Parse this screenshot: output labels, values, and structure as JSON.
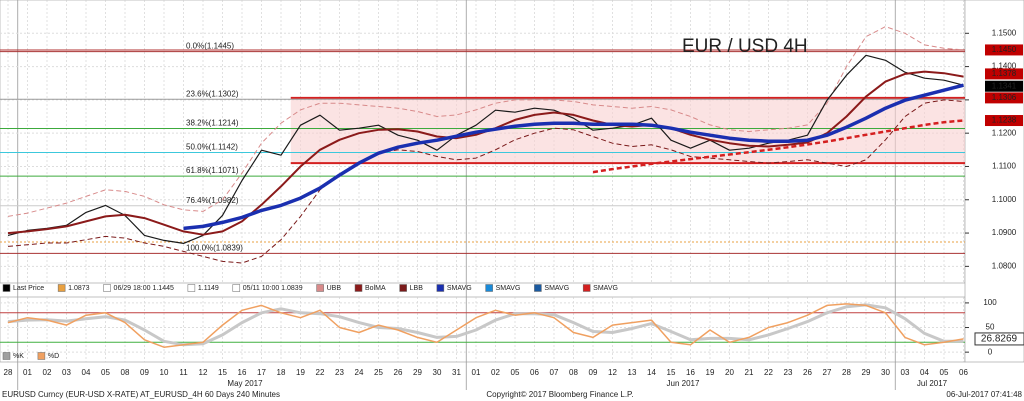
{
  "chart_data": [
    {
      "type": "line",
      "title": "EUR / USD 4H",
      "categories": [
        "28",
        "01",
        "02",
        "03",
        "04",
        "05",
        "08",
        "09",
        "10",
        "11",
        "12",
        "15",
        "16",
        "17",
        "18",
        "19",
        "22",
        "23",
        "24",
        "25",
        "26",
        "29",
        "30",
        "31",
        "01",
        "02",
        "05",
        "06",
        "07",
        "08",
        "09",
        "12",
        "13",
        "14",
        "15",
        "16",
        "19",
        "20",
        "21",
        "22",
        "23",
        "26",
        "27",
        "28",
        "29",
        "30",
        "03",
        "04",
        "05",
        "06"
      ],
      "months": [
        "May 2017",
        "Jun 2017",
        "Jul 2017"
      ],
      "ylim": [
        1.075,
        1.16
      ],
      "yticks": [
        {
          "value": 1.15,
          "label": "1.1500"
        },
        {
          "value": 1.14,
          "label": "1.1400"
        },
        {
          "value": 1.13,
          "label": "1.1300"
        },
        {
          "value": 1.12,
          "label": "1.1200"
        },
        {
          "value": 1.11,
          "label": "1.1100"
        },
        {
          "value": 1.1,
          "label": "1.1000"
        },
        {
          "value": 1.09,
          "label": "1.0900"
        },
        {
          "value": 1.08,
          "label": "1.0800"
        }
      ],
      "grid": true,
      "series": [
        {
          "color": "#d88a8a",
          "dash": true,
          "width": 1,
          "values": [
            1.095,
            1.096,
            1.0975,
            1.099,
            1.101,
            1.103,
            1.1025,
            1.101,
            1.0985,
            1.097,
            1.0965,
            1.1,
            1.108,
            1.117,
            1.123,
            1.127,
            1.129,
            1.129,
            1.1285,
            1.128,
            1.1275,
            1.1265,
            1.125,
            1.1255,
            1.127,
            1.129,
            1.13,
            1.13,
            1.13,
            1.1295,
            1.1285,
            1.128,
            1.1275,
            1.128,
            1.127,
            1.125,
            1.1225,
            1.121,
            1.1205,
            1.121,
            1.1215,
            1.1225,
            1.129,
            1.14,
            1.149,
            1.152,
            1.15,
            1.1465,
            1.1455,
            1.145
          ]
        },
        {
          "color": "#7a1a1a",
          "dash": true,
          "width": 1,
          "values": [
            1.086,
            1.0865,
            1.087,
            1.087,
            1.088,
            1.089,
            1.0885,
            1.087,
            1.086,
            1.0845,
            1.083,
            1.0815,
            1.081,
            1.083,
            1.088,
            1.095,
            1.103,
            1.1075,
            1.111,
            1.114,
            1.115,
            1.1145,
            1.113,
            1.112,
            1.1125,
            1.115,
            1.118,
            1.12,
            1.1215,
            1.121,
            1.119,
            1.117,
            1.116,
            1.1165,
            1.115,
            1.113,
            1.1125,
            1.112,
            1.1115,
            1.111,
            1.1115,
            1.112,
            1.111,
            1.11,
            1.112,
            1.118,
            1.125,
            1.129,
            1.13,
            1.1295
          ]
        },
        {
          "color": "#1a1a1a",
          "dash": false,
          "width": 1.2,
          "values": [
            1.0893,
            1.0908,
            1.0914,
            1.0923,
            1.0962,
            1.0983,
            1.0953,
            1.0893,
            1.0878,
            1.0869,
            1.0893,
            1.0953,
            1.1058,
            1.1149,
            1.1134,
            1.1224,
            1.1254,
            1.1209,
            1.1215,
            1.1224,
            1.1194,
            1.1179,
            1.1149,
            1.1194,
            1.1224,
            1.1269,
            1.1263,
            1.1275,
            1.1269,
            1.1245,
            1.1209,
            1.1215,
            1.1224,
            1.1245,
            1.1179,
            1.1155,
            1.1179,
            1.1149,
            1.1155,
            1.117,
            1.1179,
            1.1194,
            1.1299,
            1.1374,
            1.1434,
            1.1419,
            1.1383,
            1.1365,
            1.1359,
            1.1344
          ]
        },
        {
          "color": "#8b1a1a",
          "dash": false,
          "width": 2,
          "values": [
            1.09,
            1.0905,
            1.0912,
            1.092,
            1.0935,
            1.095,
            1.0955,
            1.0945,
            1.0925,
            1.0905,
            1.0895,
            1.0905,
            1.0935,
            1.0985,
            1.104,
            1.11,
            1.115,
            1.118,
            1.12,
            1.121,
            1.1212,
            1.1205,
            1.119,
            1.1185,
            1.1195,
            1.1215,
            1.124,
            1.1255,
            1.1262,
            1.1255,
            1.1238,
            1.1225,
            1.122,
            1.1225,
            1.1215,
            1.1195,
            1.118,
            1.117,
            1.1162,
            1.116,
            1.1165,
            1.1172,
            1.12,
            1.125,
            1.131,
            1.1355,
            1.1378,
            1.1385,
            1.138,
            1.137
          ]
        },
        {
          "color": "#1a2fb0",
          "dash": false,
          "width": 3.5,
          "values": [
            null,
            null,
            null,
            null,
            null,
            null,
            null,
            null,
            null,
            1.0914,
            1.092,
            1.0932,
            1.0947,
            1.0968,
            1.0983,
            1.1005,
            1.1035,
            1.1074,
            1.111,
            1.114,
            1.1158,
            1.117,
            1.1179,
            1.1191,
            1.1203,
            1.1212,
            1.1221,
            1.1227,
            1.123,
            1.123,
            1.1227,
            1.1227,
            1.1227,
            1.1224,
            1.1215,
            1.1203,
            1.1194,
            1.1185,
            1.1179,
            1.1176,
            1.1176,
            1.1179,
            1.1194,
            1.1218,
            1.1245,
            1.1275,
            1.1299,
            1.1314,
            1.1329,
            1.1344
          ]
        },
        {
          "color": "#d42020",
          "dash": true,
          "width": 2.5,
          "values": [
            null,
            null,
            null,
            null,
            null,
            null,
            null,
            null,
            null,
            null,
            null,
            null,
            null,
            null,
            null,
            null,
            null,
            null,
            null,
            null,
            null,
            null,
            null,
            null,
            null,
            null,
            null,
            null,
            null,
            null,
            1.1083,
            1.1092,
            1.11,
            1.1108,
            1.1115,
            1.1122,
            1.1129,
            1.1136,
            1.1143,
            1.115,
            1.1158,
            1.1166,
            1.1175,
            1.1185,
            1.1195,
            1.1205,
            1.1215,
            1.1225,
            1.1233,
            1.1238
          ]
        }
      ],
      "channel": {
        "upper": 1.1306,
        "lower": 1.111,
        "color": "#d42020"
      },
      "levels": [
        {
          "value": 1.1445,
          "label": "0.0%(1.1445)",
          "color": "#a83232"
        },
        {
          "value": 1.1302,
          "label": "23.6%(1.1302)",
          "color": "#999999"
        },
        {
          "value": 1.1214,
          "label": "38.2%(1.1214)",
          "color": "#3caa3c"
        },
        {
          "value": 1.1142,
          "label": "50.0%(1.1142)",
          "color": "#3cc8dc"
        },
        {
          "value": 1.1071,
          "label": "61.8%(1.1071)",
          "color": "#3caa3c"
        },
        {
          "value": 1.0982,
          "label": "76.4%(1.0982)",
          "color": "#cccccc"
        },
        {
          "value": 1.0839,
          "label": "100.0%(1.0839)",
          "color": "#a83232"
        }
      ],
      "hlines": [
        {
          "value": 1.145,
          "color": "#b03030"
        },
        {
          "value": 1.0873,
          "color": "#e8a040"
        }
      ],
      "price_boxes": [
        {
          "value": 1.145,
          "label": "1.1450",
          "color": "#c00000"
        },
        {
          "value": 1.1378,
          "label": "1.1378",
          "color": "#c00000"
        },
        {
          "value": 1.1341,
          "label": "1.1341",
          "color": "#000000"
        },
        {
          "value": 1.1306,
          "label": "1.1306",
          "color": "#c00000"
        },
        {
          "value": 1.1238,
          "label": "1.1238",
          "color": "#c00000"
        }
      ],
      "legend": [
        {
          "label": "Last Price",
          "color": "#000000"
        },
        {
          "label": "1.0873",
          "color": "#e8a040"
        },
        {
          "label": "06/29 18:00 1.1445",
          "color": "#ffffff"
        },
        {
          "label": "1.1149",
          "color": "#ffffff"
        },
        {
          "label": "05/11 10:00 1.0839",
          "color": "#ffffff"
        },
        {
          "label": "UBB",
          "color": "#d88a8a"
        },
        {
          "label": "BolMA",
          "color": "#8b1a1a"
        },
        {
          "label": "LBB",
          "color": "#7a1a1a"
        },
        {
          "label": "SMAVG",
          "color": "#1a2fb0"
        },
        {
          "label": "SMAVG",
          "color": "#1a8ad8"
        },
        {
          "label": "SMAVG",
          "color": "#1a5aa0"
        },
        {
          "label": "SMAVG",
          "color": "#d42020"
        }
      ]
    },
    {
      "type": "line",
      "ylim": [
        -20,
        112
      ],
      "yticks": [
        100,
        50,
        0
      ],
      "series": [
        {
          "color": "#c8c8c8",
          "dash": false,
          "width": 3,
          "values": [
            62,
            65,
            66,
            63,
            68,
            72,
            65,
            45,
            22,
            15,
            17,
            35,
            60,
            80,
            88,
            80,
            78,
            72,
            60,
            50,
            48,
            40,
            30,
            32,
            45,
            65,
            78,
            78,
            76,
            60,
            42,
            40,
            48,
            58,
            42,
            25,
            28,
            28,
            25,
            35,
            48,
            62,
            80,
            92,
            96,
            90,
            68,
            38,
            22,
            22
          ]
        },
        {
          "color": "#f0a060",
          "dash": false,
          "width": 1.5,
          "values": [
            60,
            70,
            65,
            55,
            75,
            80,
            60,
            25,
            10,
            15,
            20,
            55,
            85,
            95,
            80,
            70,
            85,
            50,
            40,
            55,
            45,
            30,
            20,
            45,
            70,
            85,
            75,
            80,
            70,
            40,
            30,
            55,
            60,
            65,
            20,
            15,
            45,
            20,
            30,
            50,
            60,
            75,
            95,
            98,
            95,
            80,
            30,
            15,
            20,
            26.8269
          ]
        }
      ],
      "levels": [
        {
          "value": 80,
          "color": "#c04040"
        },
        {
          "value": 20,
          "color": "#40b040"
        }
      ],
      "last_value": 26.8269,
      "legend": [
        {
          "label": "%K",
          "color": "#a0a0a0"
        },
        {
          "label": "%D",
          "color": "#f0a060"
        }
      ]
    }
  ],
  "footer": {
    "left": "EURUSD Curncy (EUR-USD X-RATE) AT_EURUSD_4H 60 Days 240 Minutes",
    "center": "Copyright© 2017 Bloomberg Finance L.P.",
    "right": "06-Jul-2017 07:41:48"
  }
}
